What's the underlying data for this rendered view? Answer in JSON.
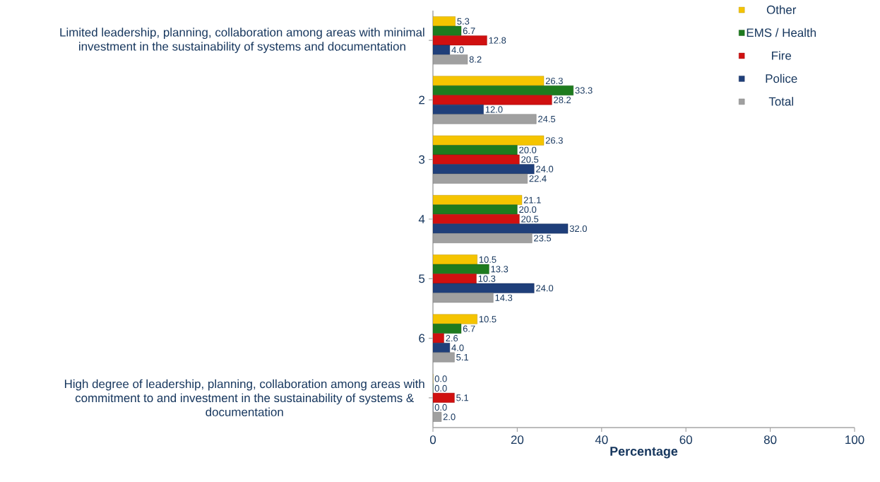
{
  "chart_data": {
    "type": "bar",
    "orientation": "horizontal",
    "categories": [
      "Limited leadership, planning, collaboration among areas with minimal investment in the sustainability of systems and documentation",
      "2",
      "3",
      "4",
      "5",
      "6",
      "High degree of leadership, planning, collaboration among areas with commitment to and investment in the sustainability of systems & documentation"
    ],
    "series": [
      {
        "name": "Other",
        "color": "#f5c400",
        "values": [
          5.3,
          26.3,
          26.3,
          21.1,
          10.5,
          10.5,
          0.0
        ],
        "value_labels": [
          "5.3",
          "26.3",
          "26.3",
          "21.1",
          "10.5",
          "10.5",
          "0.0"
        ]
      },
      {
        "name": "EMS / Health",
        "color": "#1e7b1e",
        "values": [
          6.7,
          33.3,
          20.0,
          20.0,
          13.3,
          6.7,
          0.0
        ],
        "value_labels": [
          "6.7",
          "33.3",
          "20.0",
          "20.0",
          "13.3",
          "6.7",
          "0.0"
        ]
      },
      {
        "name": "Fire",
        "color": "#d01010",
        "values": [
          12.8,
          28.2,
          20.5,
          20.5,
          10.3,
          2.6,
          5.1
        ],
        "value_labels": [
          "12.8",
          "28.2",
          "20.5",
          "20.5",
          "10.3",
          "2.6",
          "5.1"
        ]
      },
      {
        "name": "Police",
        "color": "#1f3f7a",
        "values": [
          4.0,
          12.0,
          24.0,
          32.0,
          24.0,
          4.0,
          0.0
        ],
        "value_labels": [
          "4.0",
          "12.0",
          "24.0",
          "32.0",
          "24.0",
          "4.0",
          "0.0"
        ]
      },
      {
        "name": "Total",
        "color": "#a0a0a0",
        "values": [
          8.2,
          24.5,
          22.4,
          23.5,
          14.3,
          5.1,
          2.0
        ],
        "value_labels": [
          "8.2",
          "24.5",
          "22.4",
          "23.5",
          "14.3",
          "5.1",
          "2.0"
        ]
      }
    ],
    "xlabel": "Percentage",
    "xlim": [
      0,
      100
    ],
    "xticks": [
      0,
      20,
      40,
      60,
      80,
      100
    ],
    "legend": "right",
    "grid": false
  }
}
